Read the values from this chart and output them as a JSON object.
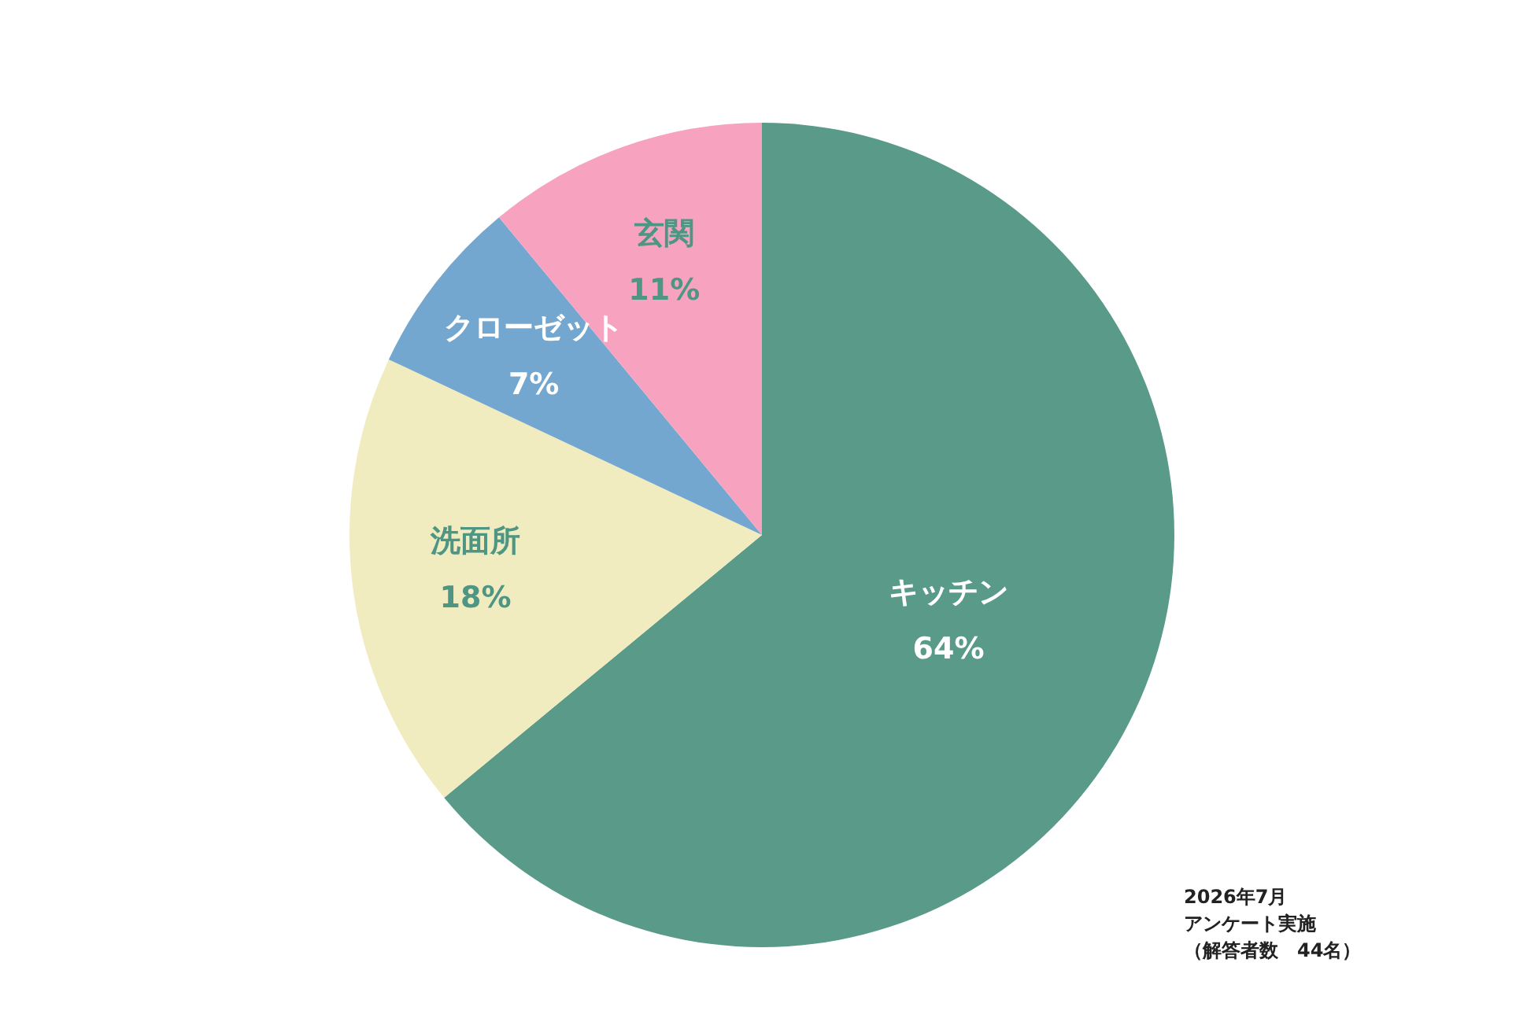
{
  "chart_data": {
    "type": "pie",
    "categories": [
      "キッチン",
      "洗面所",
      "クローゼット",
      "玄関"
    ],
    "values": [
      64,
      18,
      7,
      11
    ],
    "colors": [
      "#5a9a88",
      "#f0ecc0",
      "#74a7cf",
      "#f7a3bf"
    ],
    "value_labels": [
      "64%",
      "18%",
      "7%",
      "11%"
    ],
    "legend": false,
    "annotations": [
      "2026年7月",
      "アンケート実施",
      "（解答者数　44名）"
    ]
  }
}
